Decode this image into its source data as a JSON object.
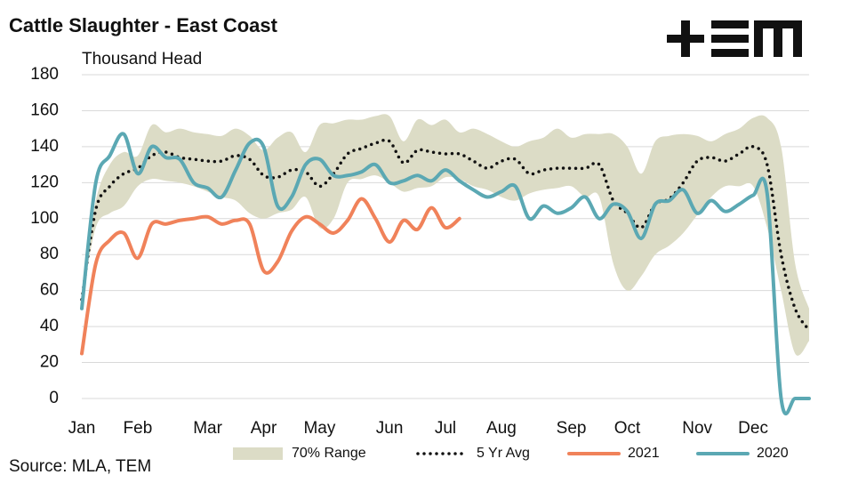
{
  "chart_data": {
    "type": "line",
    "title": "Cattle Slaughter - East Coast",
    "y_label": "Thousand Head",
    "source": "Source: MLA, TEM",
    "categories": [
      "Jan",
      null,
      null,
      null,
      "Feb",
      null,
      null,
      null,
      null,
      "Mar",
      null,
      null,
      null,
      "Apr",
      null,
      null,
      null,
      "May",
      null,
      null,
      null,
      null,
      "Jun",
      null,
      null,
      null,
      "Jul",
      null,
      null,
      null,
      "Aug",
      null,
      null,
      null,
      null,
      "Sep",
      null,
      null,
      null,
      "Oct",
      null,
      null,
      null,
      null,
      "Nov",
      null,
      null,
      null,
      "Dec",
      null,
      null,
      null,
      null
    ],
    "ylim": [
      0,
      180
    ],
    "yticks": [
      0,
      20,
      40,
      60,
      80,
      100,
      120,
      140,
      160,
      180
    ],
    "grid": true,
    "legend": "bottom",
    "series": [
      {
        "name": "70% Range",
        "color": "#dcdcc6",
        "style": "range",
        "low": [
          55,
          95,
          103,
          107,
          118,
          122,
          121,
          120,
          118,
          115,
          112,
          110,
          103,
          100,
          103,
          105,
          112,
          95,
          100,
          120,
          122,
          124,
          120,
          115,
          117,
          118,
          123,
          122,
          118,
          116,
          112,
          110,
          114,
          116,
          117,
          118,
          112,
          112,
          75,
          60,
          68,
          80,
          85,
          92,
          102,
          112,
          118,
          118,
          118,
          95,
          60,
          25,
          32
        ],
        "high": [
          60,
          110,
          130,
          137,
          135,
          152,
          148,
          150,
          148,
          147,
          146,
          150,
          146,
          138,
          145,
          148,
          137,
          152,
          153,
          155,
          155,
          157,
          157,
          143,
          155,
          152,
          155,
          148,
          150,
          147,
          143,
          140,
          143,
          145,
          150,
          145,
          147,
          147,
          147,
          140,
          125,
          143,
          146,
          147,
          146,
          143,
          147,
          150,
          156,
          156,
          140,
          75,
          50
        ]
      },
      {
        "name": "5 Yr Avg",
        "color": "#111111",
        "style": "dotted",
        "values": [
          55,
          105,
          118,
          125,
          128,
          135,
          137,
          134,
          133,
          132,
          132,
          135,
          133,
          124,
          123,
          127,
          126,
          118,
          125,
          136,
          139,
          142,
          143,
          131,
          138,
          137,
          136,
          136,
          132,
          128,
          132,
          133,
          125,
          127,
          128,
          128,
          128,
          130,
          110,
          103,
          95,
          108,
          111,
          120,
          132,
          134,
          132,
          136,
          140,
          130,
          80,
          50,
          38
        ]
      },
      {
        "name": "2021",
        "color": "#f0825a",
        "style": "solid",
        "values": [
          25,
          75,
          88,
          92,
          78,
          97,
          97,
          99,
          100,
          101,
          97,
          99,
          97,
          71,
          76,
          93,
          101,
          97,
          92,
          99,
          111,
          100,
          87,
          99,
          94,
          106,
          95,
          100,
          null,
          null,
          null,
          null,
          null,
          null,
          null,
          null,
          null,
          null,
          null,
          null,
          null,
          null,
          null,
          null,
          null,
          null,
          null,
          null,
          null,
          null,
          null,
          null,
          null
        ]
      },
      {
        "name": "2020",
        "color": "#5ba8b3",
        "style": "solid",
        "values": [
          50,
          120,
          135,
          147,
          125,
          140,
          134,
          133,
          120,
          117,
          112,
          127,
          142,
          140,
          107,
          112,
          130,
          133,
          124,
          124,
          126,
          130,
          120,
          121,
          124,
          121,
          127,
          121,
          116,
          112,
          115,
          118,
          100,
          107,
          103,
          106,
          112,
          100,
          108,
          104,
          89,
          108,
          110,
          116,
          103,
          110,
          104,
          108,
          113,
          114,
          0,
          0,
          0
        ]
      }
    ]
  }
}
